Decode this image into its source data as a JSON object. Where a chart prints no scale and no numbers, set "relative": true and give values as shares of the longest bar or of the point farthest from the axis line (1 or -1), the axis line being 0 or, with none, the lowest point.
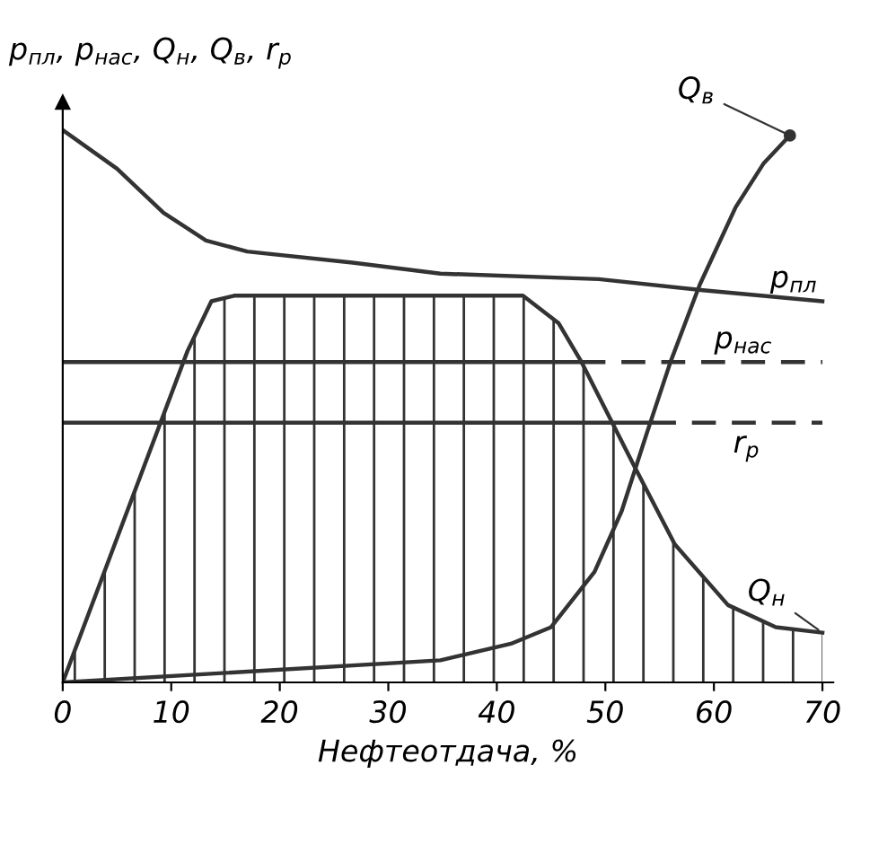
{
  "chart_data": {
    "type": "line",
    "relative": true,
    "xlabel": "Нефтеотдача, %",
    "ylabel": "p$_{пл}$, p$_{нас}$, Q$_{н}$, Q$_{в}$, r$_{р}$",
    "xlim": [
      0,
      71
    ],
    "xticks": [
      0,
      10,
      20,
      30,
      40,
      50,
      60,
      70
    ],
    "grid": false,
    "legend": false,
    "marker": "none",
    "series": [
      {
        "name": "p$_{пл}$",
        "color": "#333333",
        "line_style": "solid",
        "x": [
          0,
          5,
          9.3,
          13.2,
          17,
          26.7,
          34.8,
          49.4,
          59,
          70
        ],
        "values": [
          1,
          0.93,
          0.85,
          0.8,
          0.78,
          0.76,
          0.74,
          0.73,
          0.71,
          0.69
        ]
      },
      {
        "name": "Q$_{н}$",
        "type": "area",
        "color": "#333333",
        "line_style": "solid",
        "x": [
          0,
          11.5,
          13.7,
          15.8,
          42.4,
          45.7,
          47.8,
          52.7,
          56.4,
          61.3,
          65.7,
          70
        ],
        "values": [
          0,
          0.6,
          0.69,
          0.7,
          0.7,
          0.65,
          0.58,
          0.39,
          0.25,
          0.14,
          0.1,
          0.09
        ]
      },
      {
        "color": "#333333",
        "line_style": "solid",
        "x": [
          0,
          47.8
        ],
        "values": [
          0.58,
          0.58
        ]
      },
      {
        "name": "p$_{нас}$",
        "color": "#333333",
        "line_style": "dashed",
        "x": [
          47.8,
          70
        ],
        "values": [
          0.58,
          0.58
        ]
      },
      {
        "color": "#333333",
        "line_style": "solid",
        "x": [
          0,
          54.3
        ],
        "values": [
          0.47,
          0.47
        ]
      },
      {
        "name": "r$_{р}$",
        "color": "#333333",
        "line_style": "dashed",
        "x": [
          54.3,
          70
        ],
        "values": [
          0.47,
          0.47
        ]
      },
      {
        "name": "Q$_{в}$",
        "color": "#333333",
        "line_style": "solid",
        "x": [
          0,
          34.8,
          41.3,
          45,
          49,
          51.5,
          53.8,
          56,
          58.7,
          62,
          64.6,
          67
        ],
        "values": [
          0,
          0.04,
          0.07,
          0.1,
          0.2,
          0.31,
          0.45,
          0.58,
          0.72,
          0.86,
          0.94,
          0.99
        ]
      }
    ]
  }
}
